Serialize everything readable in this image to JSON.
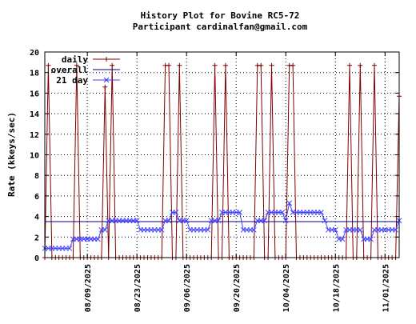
{
  "chart_data": {
    "type": "line",
    "title": "History Plot for Bovine RC5-72",
    "subtitle": "Participant cardinalfan@gmail.com",
    "xlabel": "",
    "ylabel": "Rate (kkeys/sec)",
    "xlim": [
      "2025-07-28",
      "2025-11-05"
    ],
    "ylim": [
      0,
      20
    ],
    "y_ticks": [
      0,
      2,
      4,
      6,
      8,
      10,
      12,
      14,
      16,
      18,
      20
    ],
    "x_ticks": [
      "2025-08-09",
      "2025-08-23",
      "2025-09-06",
      "2025-09-20",
      "2025-10-04",
      "2025-10-18",
      "2025-11-01"
    ],
    "x_tick_labels": [
      "08/09/2025",
      "08/23/2025",
      "09/06/2025",
      "09/20/2025",
      "10/04/2025",
      "10/18/2025",
      "11/01/2025"
    ],
    "grid": true,
    "legend_position": "top-left",
    "series": [
      {
        "name": "daily",
        "color": "#800000",
        "marker": "plus",
        "points": [
          [
            "2025-07-28",
            0
          ],
          [
            "2025-07-29",
            18.7
          ],
          [
            "2025-07-30",
            0
          ],
          [
            "2025-07-31",
            0
          ],
          [
            "2025-08-01",
            0
          ],
          [
            "2025-08-02",
            0
          ],
          [
            "2025-08-03",
            0
          ],
          [
            "2025-08-04",
            0
          ],
          [
            "2025-08-05",
            0
          ],
          [
            "2025-08-06",
            18.7
          ],
          [
            "2025-08-07",
            0
          ],
          [
            "2025-08-08",
            0
          ],
          [
            "2025-08-09",
            0
          ],
          [
            "2025-08-10",
            0
          ],
          [
            "2025-08-11",
            0
          ],
          [
            "2025-08-12",
            0
          ],
          [
            "2025-08-13",
            0
          ],
          [
            "2025-08-14",
            16.6
          ],
          [
            "2025-08-15",
            0
          ],
          [
            "2025-08-16",
            18.7
          ],
          [
            "2025-08-17",
            0
          ],
          [
            "2025-08-18",
            0
          ],
          [
            "2025-08-19",
            0
          ],
          [
            "2025-08-20",
            0
          ],
          [
            "2025-08-21",
            0
          ],
          [
            "2025-08-22",
            0
          ],
          [
            "2025-08-23",
            0
          ],
          [
            "2025-08-24",
            0
          ],
          [
            "2025-08-25",
            0
          ],
          [
            "2025-08-26",
            0
          ],
          [
            "2025-08-27",
            0
          ],
          [
            "2025-08-28",
            0
          ],
          [
            "2025-08-29",
            0
          ],
          [
            "2025-08-30",
            0
          ],
          [
            "2025-08-31",
            18.7
          ],
          [
            "2025-09-01",
            18.7
          ],
          [
            "2025-09-02",
            0
          ],
          [
            "2025-09-03",
            0
          ],
          [
            "2025-09-04",
            18.7
          ],
          [
            "2025-09-05",
            0
          ],
          [
            "2025-09-06",
            0
          ],
          [
            "2025-09-07",
            0
          ],
          [
            "2025-09-08",
            0
          ],
          [
            "2025-09-09",
            0
          ],
          [
            "2025-09-10",
            0
          ],
          [
            "2025-09-11",
            0
          ],
          [
            "2025-09-12",
            0
          ],
          [
            "2025-09-13",
            0
          ],
          [
            "2025-09-14",
            18.7
          ],
          [
            "2025-09-15",
            0
          ],
          [
            "2025-09-16",
            0
          ],
          [
            "2025-09-17",
            18.7
          ],
          [
            "2025-09-18",
            0
          ],
          [
            "2025-09-19",
            0
          ],
          [
            "2025-09-20",
            0
          ],
          [
            "2025-09-21",
            0
          ],
          [
            "2025-09-22",
            0
          ],
          [
            "2025-09-23",
            0
          ],
          [
            "2025-09-24",
            0
          ],
          [
            "2025-09-25",
            0
          ],
          [
            "2025-09-26",
            18.7
          ],
          [
            "2025-09-27",
            18.7
          ],
          [
            "2025-09-28",
            0
          ],
          [
            "2025-09-29",
            0
          ],
          [
            "2025-09-30",
            18.7
          ],
          [
            "2025-10-01",
            0
          ],
          [
            "2025-10-02",
            0
          ],
          [
            "2025-10-03",
            0
          ],
          [
            "2025-10-04",
            0
          ],
          [
            "2025-10-05",
            18.7
          ],
          [
            "2025-10-06",
            18.7
          ],
          [
            "2025-10-07",
            0
          ],
          [
            "2025-10-08",
            0
          ],
          [
            "2025-10-09",
            0
          ],
          [
            "2025-10-10",
            0
          ],
          [
            "2025-10-11",
            0
          ],
          [
            "2025-10-12",
            0
          ],
          [
            "2025-10-13",
            0
          ],
          [
            "2025-10-14",
            0
          ],
          [
            "2025-10-15",
            0
          ],
          [
            "2025-10-16",
            0
          ],
          [
            "2025-10-17",
            0
          ],
          [
            "2025-10-18",
            0
          ],
          [
            "2025-10-19",
            0
          ],
          [
            "2025-10-20",
            0
          ],
          [
            "2025-10-21",
            0
          ],
          [
            "2025-10-22",
            18.7
          ],
          [
            "2025-10-23",
            0
          ],
          [
            "2025-10-24",
            0
          ],
          [
            "2025-10-25",
            18.7
          ],
          [
            "2025-10-26",
            0
          ],
          [
            "2025-10-27",
            0
          ],
          [
            "2025-10-28",
            0
          ],
          [
            "2025-10-29",
            18.7
          ],
          [
            "2025-10-30",
            0
          ],
          [
            "2025-10-31",
            0
          ],
          [
            "2025-11-01",
            0
          ],
          [
            "2025-11-02",
            0
          ],
          [
            "2025-11-03",
            0
          ],
          [
            "2025-11-04",
            0
          ],
          [
            "2025-11-05",
            15.7
          ]
        ]
      },
      {
        "name": "overall",
        "color": "#000080",
        "marker": "none",
        "points": [
          [
            "2025-07-28",
            3.5
          ],
          [
            "2025-11-05",
            3.5
          ]
        ]
      },
      {
        "name": "21 day",
        "color": "#4040ff",
        "marker": "x",
        "points": [
          [
            "2025-07-28",
            0.9
          ],
          [
            "2025-07-29",
            0.9
          ],
          [
            "2025-07-30",
            0.9
          ],
          [
            "2025-07-31",
            0.9
          ],
          [
            "2025-08-01",
            0.9
          ],
          [
            "2025-08-02",
            0.9
          ],
          [
            "2025-08-03",
            0.9
          ],
          [
            "2025-08-04",
            0.9
          ],
          [
            "2025-08-05",
            1.8
          ],
          [
            "2025-08-06",
            1.8
          ],
          [
            "2025-08-07",
            1.8
          ],
          [
            "2025-08-08",
            1.8
          ],
          [
            "2025-08-09",
            1.8
          ],
          [
            "2025-08-10",
            1.8
          ],
          [
            "2025-08-11",
            1.8
          ],
          [
            "2025-08-12",
            1.8
          ],
          [
            "2025-08-13",
            2.7
          ],
          [
            "2025-08-14",
            2.7
          ],
          [
            "2025-08-15",
            3.6
          ],
          [
            "2025-08-16",
            3.6
          ],
          [
            "2025-08-17",
            3.6
          ],
          [
            "2025-08-18",
            3.6
          ],
          [
            "2025-08-19",
            3.6
          ],
          [
            "2025-08-20",
            3.6
          ],
          [
            "2025-08-21",
            3.6
          ],
          [
            "2025-08-22",
            3.6
          ],
          [
            "2025-08-23",
            3.6
          ],
          [
            "2025-08-24",
            2.7
          ],
          [
            "2025-08-25",
            2.7
          ],
          [
            "2025-08-26",
            2.7
          ],
          [
            "2025-08-27",
            2.7
          ],
          [
            "2025-08-28",
            2.7
          ],
          [
            "2025-08-29",
            2.7
          ],
          [
            "2025-08-30",
            2.7
          ],
          [
            "2025-08-31",
            3.6
          ],
          [
            "2025-09-01",
            3.6
          ],
          [
            "2025-09-02",
            4.4
          ],
          [
            "2025-09-03",
            4.4
          ],
          [
            "2025-09-04",
            3.6
          ],
          [
            "2025-09-05",
            3.6
          ],
          [
            "2025-09-06",
            3.6
          ],
          [
            "2025-09-07",
            2.7
          ],
          [
            "2025-09-08",
            2.7
          ],
          [
            "2025-09-09",
            2.7
          ],
          [
            "2025-09-10",
            2.7
          ],
          [
            "2025-09-11",
            2.7
          ],
          [
            "2025-09-12",
            2.7
          ],
          [
            "2025-09-13",
            3.6
          ],
          [
            "2025-09-14",
            3.6
          ],
          [
            "2025-09-15",
            3.6
          ],
          [
            "2025-09-16",
            4.4
          ],
          [
            "2025-09-17",
            4.4
          ],
          [
            "2025-09-18",
            4.4
          ],
          [
            "2025-09-19",
            4.4
          ],
          [
            "2025-09-20",
            4.4
          ],
          [
            "2025-09-21",
            4.4
          ],
          [
            "2025-09-22",
            2.7
          ],
          [
            "2025-09-23",
            2.7
          ],
          [
            "2025-09-24",
            2.7
          ],
          [
            "2025-09-25",
            2.7
          ],
          [
            "2025-09-26",
            3.6
          ],
          [
            "2025-09-27",
            3.6
          ],
          [
            "2025-09-28",
            3.6
          ],
          [
            "2025-09-29",
            4.4
          ],
          [
            "2025-09-30",
            4.4
          ],
          [
            "2025-10-01",
            4.4
          ],
          [
            "2025-10-02",
            4.4
          ],
          [
            "2025-10-03",
            4.4
          ],
          [
            "2025-10-04",
            3.6
          ],
          [
            "2025-10-05",
            5.3
          ],
          [
            "2025-10-06",
            4.4
          ],
          [
            "2025-10-07",
            4.4
          ],
          [
            "2025-10-08",
            4.4
          ],
          [
            "2025-10-09",
            4.4
          ],
          [
            "2025-10-10",
            4.4
          ],
          [
            "2025-10-11",
            4.4
          ],
          [
            "2025-10-12",
            4.4
          ],
          [
            "2025-10-13",
            4.4
          ],
          [
            "2025-10-14",
            4.4
          ],
          [
            "2025-10-15",
            3.6
          ],
          [
            "2025-10-16",
            2.7
          ],
          [
            "2025-10-17",
            2.7
          ],
          [
            "2025-10-18",
            2.7
          ],
          [
            "2025-10-19",
            1.8
          ],
          [
            "2025-10-20",
            1.8
          ],
          [
            "2025-10-21",
            2.7
          ],
          [
            "2025-10-22",
            2.7
          ],
          [
            "2025-10-23",
            2.7
          ],
          [
            "2025-10-24",
            2.7
          ],
          [
            "2025-10-25",
            2.7
          ],
          [
            "2025-10-26",
            1.8
          ],
          [
            "2025-10-27",
            1.8
          ],
          [
            "2025-10-28",
            1.8
          ],
          [
            "2025-10-29",
            2.7
          ],
          [
            "2025-10-30",
            2.7
          ],
          [
            "2025-10-31",
            2.7
          ],
          [
            "2025-11-01",
            2.7
          ],
          [
            "2025-11-02",
            2.7
          ],
          [
            "2025-11-03",
            2.7
          ],
          [
            "2025-11-04",
            2.7
          ],
          [
            "2025-11-05",
            3.6
          ]
        ]
      }
    ]
  }
}
